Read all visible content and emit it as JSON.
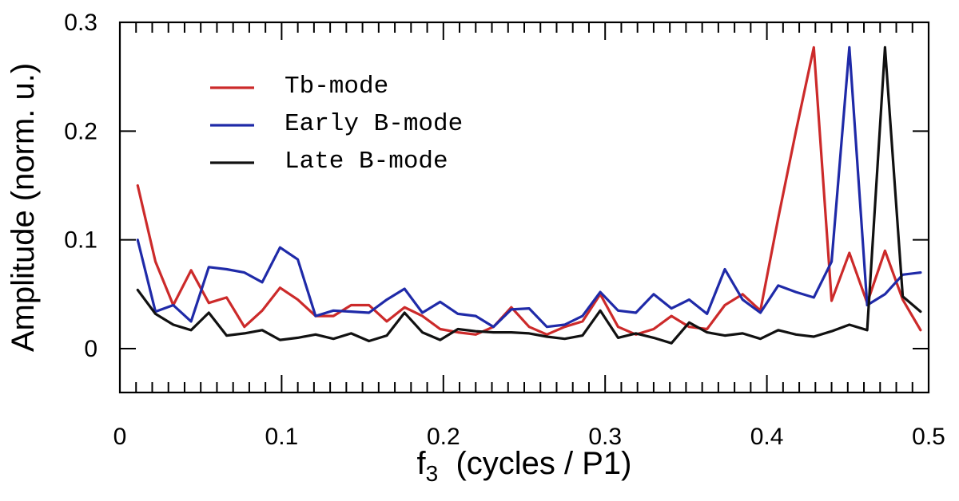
{
  "chart_data": {
    "type": "line",
    "title": "",
    "xlabel": "f",
    "xlabel_sub": "3",
    "xlabel_rest": "  (cycles / P1)",
    "ylabel": "Amplitude (norm. u.)",
    "xlim": [
      0,
      0.5
    ],
    "ylim": [
      -0.05,
      0.3
    ],
    "xticks": [
      0,
      0.1,
      0.2,
      0.3,
      0.4,
      0.5
    ],
    "xtick_labels": [
      "0",
      "0.1",
      "0.2",
      "0.3",
      "0.4",
      "0.5"
    ],
    "x_minor_step": 0.01,
    "yticks": [
      0,
      0.1,
      0.2,
      0.3
    ],
    "ytick_labels": [
      "0",
      "0.1",
      "0.2",
      "0.3"
    ],
    "grid": false,
    "legend_position": "upper-left",
    "series": [
      {
        "name": "Tb-mode",
        "color": "#cc2a2a",
        "x": [
          0.011,
          0.022,
          0.033,
          0.044,
          0.055,
          0.066,
          0.077,
          0.088,
          0.099,
          0.11,
          0.121,
          0.132,
          0.143,
          0.154,
          0.165,
          0.176,
          0.187,
          0.198,
          0.209,
          0.22,
          0.231,
          0.242,
          0.253,
          0.264,
          0.275,
          0.286,
          0.297,
          0.308,
          0.319,
          0.33,
          0.341,
          0.352,
          0.363,
          0.374,
          0.385,
          0.396,
          0.407,
          0.418,
          0.429,
          0.44,
          0.451,
          0.462,
          0.473,
          0.484,
          0.495
        ],
        "y": [
          0.15,
          0.08,
          0.04,
          0.072,
          0.042,
          0.047,
          0.02,
          0.035,
          0.056,
          0.045,
          0.03,
          0.03,
          0.04,
          0.04,
          0.025,
          0.038,
          0.03,
          0.018,
          0.015,
          0.013,
          0.02,
          0.038,
          0.02,
          0.013,
          0.02,
          0.025,
          0.05,
          0.02,
          0.013,
          0.018,
          0.03,
          0.02,
          0.018,
          0.04,
          0.05,
          0.035,
          0.12,
          0.2,
          0.277,
          0.044,
          0.088,
          0.042,
          0.09,
          0.045,
          0.017
        ]
      },
      {
        "name": "Early B-mode",
        "color": "#1f2aa8",
        "x": [
          0.011,
          0.022,
          0.033,
          0.044,
          0.055,
          0.066,
          0.077,
          0.088,
          0.099,
          0.11,
          0.121,
          0.132,
          0.143,
          0.154,
          0.165,
          0.176,
          0.187,
          0.198,
          0.209,
          0.22,
          0.231,
          0.242,
          0.253,
          0.264,
          0.275,
          0.286,
          0.297,
          0.308,
          0.319,
          0.33,
          0.341,
          0.352,
          0.363,
          0.374,
          0.385,
          0.396,
          0.407,
          0.418,
          0.429,
          0.44,
          0.451,
          0.462,
          0.473,
          0.484,
          0.495
        ],
        "y": [
          0.1,
          0.034,
          0.04,
          0.025,
          0.075,
          0.073,
          0.07,
          0.061,
          0.093,
          0.082,
          0.03,
          0.035,
          0.034,
          0.033,
          0.045,
          0.055,
          0.033,
          0.043,
          0.032,
          0.03,
          0.02,
          0.036,
          0.037,
          0.02,
          0.022,
          0.03,
          0.052,
          0.035,
          0.033,
          0.05,
          0.037,
          0.045,
          0.032,
          0.073,
          0.045,
          0.033,
          0.058,
          0.052,
          0.047,
          0.08,
          0.277,
          0.04,
          0.05,
          0.068,
          0.07
        ]
      },
      {
        "name": "Late B-mode",
        "color": "#111111",
        "x": [
          0.011,
          0.022,
          0.033,
          0.044,
          0.055,
          0.066,
          0.077,
          0.088,
          0.099,
          0.11,
          0.121,
          0.132,
          0.143,
          0.154,
          0.165,
          0.176,
          0.187,
          0.198,
          0.209,
          0.22,
          0.231,
          0.242,
          0.253,
          0.264,
          0.275,
          0.286,
          0.297,
          0.308,
          0.319,
          0.33,
          0.341,
          0.352,
          0.363,
          0.374,
          0.385,
          0.396,
          0.407,
          0.418,
          0.429,
          0.44,
          0.451,
          0.462,
          0.473,
          0.484,
          0.495
        ],
        "y": [
          0.054,
          0.032,
          0.022,
          0.017,
          0.033,
          0.012,
          0.014,
          0.017,
          0.008,
          0.01,
          0.013,
          0.009,
          0.014,
          0.007,
          0.012,
          0.033,
          0.015,
          0.008,
          0.018,
          0.016,
          0.015,
          0.015,
          0.014,
          0.011,
          0.009,
          0.012,
          0.035,
          0.01,
          0.014,
          0.01,
          0.005,
          0.024,
          0.015,
          0.012,
          0.014,
          0.009,
          0.017,
          0.013,
          0.011,
          0.016,
          0.022,
          0.017,
          0.277,
          0.048,
          0.034
        ]
      }
    ]
  }
}
